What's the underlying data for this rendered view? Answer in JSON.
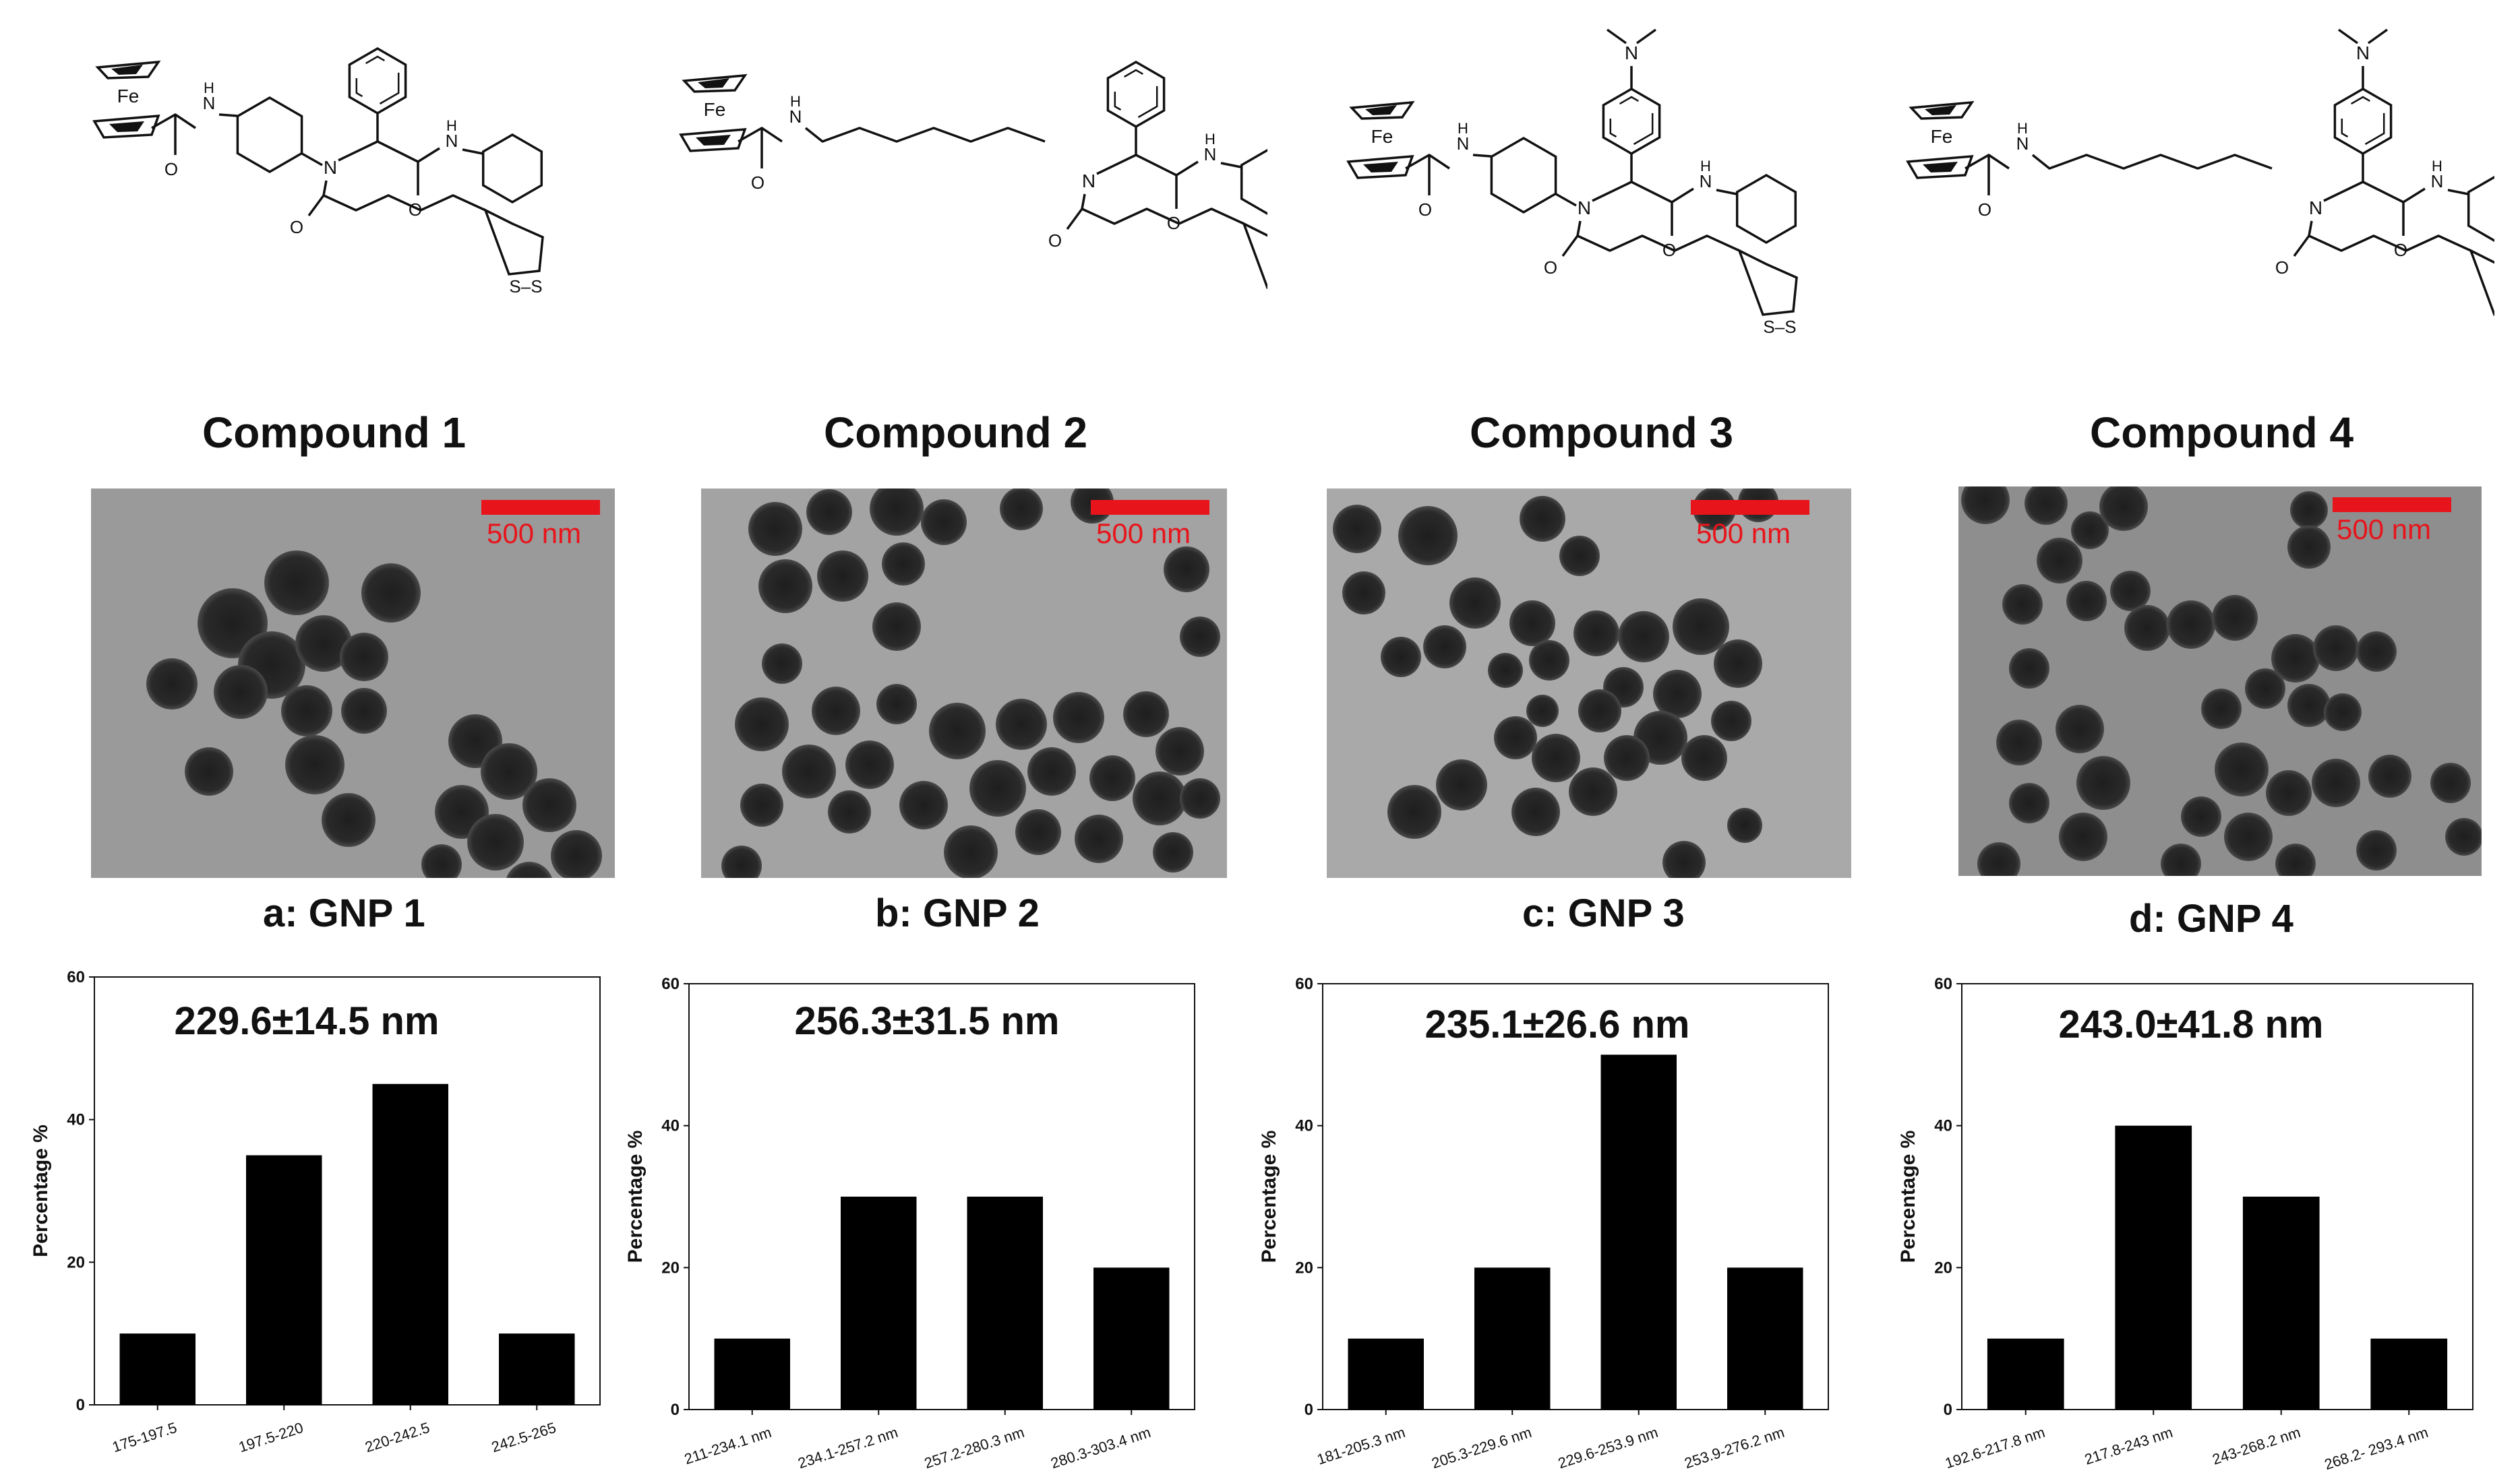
{
  "compounds": [
    {
      "label": "Compound 1",
      "linker": "cyclohexyl",
      "aryl": "phenyl"
    },
    {
      "label": "Compound 2",
      "linker": "hexyl",
      "aryl": "phenyl"
    },
    {
      "label": "Compound 3",
      "linker": "cyclohexyl",
      "aryl": "dimethylaminophenyl"
    },
    {
      "label": "Compound 4",
      "linker": "hexyl",
      "aryl": "dimethylaminophenyl"
    }
  ],
  "structure_labels": {
    "iron": "Fe",
    "nitrogen": "N",
    "nh": "N",
    "h": "H",
    "oxygen": "O",
    "sulfur": "S",
    "sulfur_pair": "S–S"
  },
  "tem_images": [
    {
      "label": "a: GNP 1",
      "scale_text": "500 nm",
      "scale_color": "#e8141b"
    },
    {
      "label": "b: GNP 2",
      "scale_text": "500 nm",
      "scale_color": "#e8141b"
    },
    {
      "label": "c: GNP 3",
      "scale_text": "500 nm",
      "scale_color": "#e8141b"
    },
    {
      "label": "d: GNP 4",
      "scale_text": "500 nm",
      "scale_color": "#e8141b"
    }
  ],
  "chart_data": [
    {
      "type": "bar",
      "annotation": "229.6±14.5 nm",
      "ylabel": "Percentage %",
      "xlabel": "",
      "ylim": [
        0,
        60
      ],
      "yticks": [
        0,
        20,
        40,
        60
      ],
      "categories": [
        "175-197.5",
        "197.5-220",
        "220-242.5",
        "242.5-265"
      ],
      "values": [
        10,
        35,
        45,
        10
      ],
      "bar_color": "#000000"
    },
    {
      "type": "bar",
      "annotation": "256.3±31.5 nm",
      "ylabel": "Percentage %",
      "xlabel": "",
      "ylim": [
        0,
        60
      ],
      "yticks": [
        0,
        20,
        40,
        60
      ],
      "categories": [
        "211-234.1 nm",
        "234.1-257.2 nm",
        "257.2-280.3 nm",
        "280.3-303.4 nm"
      ],
      "values": [
        10,
        30,
        30,
        20
      ],
      "bar_color": "#000000"
    },
    {
      "type": "bar",
      "annotation": "235.1±26.6 nm",
      "ylabel": "Percentage %",
      "xlabel": "",
      "ylim": [
        0,
        60
      ],
      "yticks": [
        0,
        20,
        40,
        60
      ],
      "categories": [
        "181-205.3 nm",
        "205.3-229.6 nm",
        "229.6-253.9 nm",
        "253.9-276.2 nm"
      ],
      "values": [
        10,
        20,
        50,
        20
      ],
      "bar_color": "#000000"
    },
    {
      "type": "bar",
      "annotation": "243.0±41.8 nm",
      "ylabel": "Percentage %",
      "xlabel": "",
      "ylim": [
        0,
        60
      ],
      "yticks": [
        0,
        20,
        40,
        60
      ],
      "categories": [
        "192.6-217.8 nm",
        "217.8-243 nm",
        "243-268.2 nm",
        "268.2- 293.4 nm"
      ],
      "values": [
        10,
        40,
        30,
        10
      ],
      "bar_color": "#000000"
    }
  ]
}
